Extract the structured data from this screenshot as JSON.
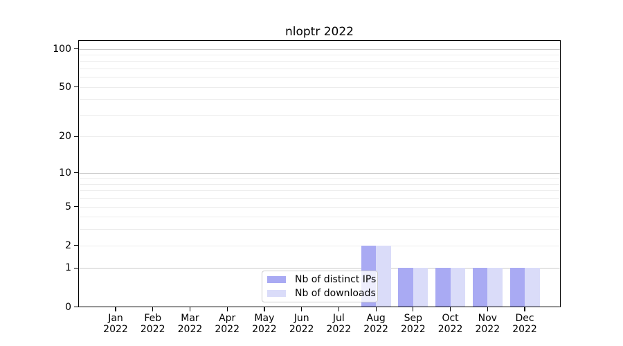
{
  "chart_data": {
    "type": "bar",
    "title": "nloptr 2022",
    "categories": [
      "Jan",
      "Feb",
      "Mar",
      "Apr",
      "May",
      "Jun",
      "Jul",
      "Aug",
      "Sep",
      "Oct",
      "Nov",
      "Dec"
    ],
    "year_label": "2022",
    "series": [
      {
        "name": "Nb of distinct IPs",
        "color": "#a9aaf3",
        "values": [
          0,
          0,
          0,
          0,
          0,
          0,
          0,
          2,
          1,
          1,
          1,
          1
        ]
      },
      {
        "name": "Nb of downloads",
        "color": "#dadcf9",
        "values": [
          0,
          0,
          0,
          0,
          0,
          0,
          0,
          2,
          1,
          1,
          1,
          1
        ]
      }
    ],
    "yscale": "log1p",
    "ylim": [
      0,
      117
    ],
    "yticks": [
      0,
      1,
      2,
      5,
      10,
      20,
      50,
      100
    ],
    "grid": {
      "on": true,
      "major_lines": [
        1,
        10,
        100
      ],
      "minor_lines": [
        2,
        3,
        4,
        5,
        6,
        7,
        8,
        9,
        20,
        30,
        40,
        50,
        60,
        70,
        80,
        90
      ],
      "major_color": "#c9c9c9",
      "minor_color": "#ececec"
    },
    "legend": {
      "position": "lower-center-inside",
      "frame_color": "#cccccc"
    },
    "axis_color": "#000000",
    "xlabel": "",
    "ylabel": ""
  }
}
